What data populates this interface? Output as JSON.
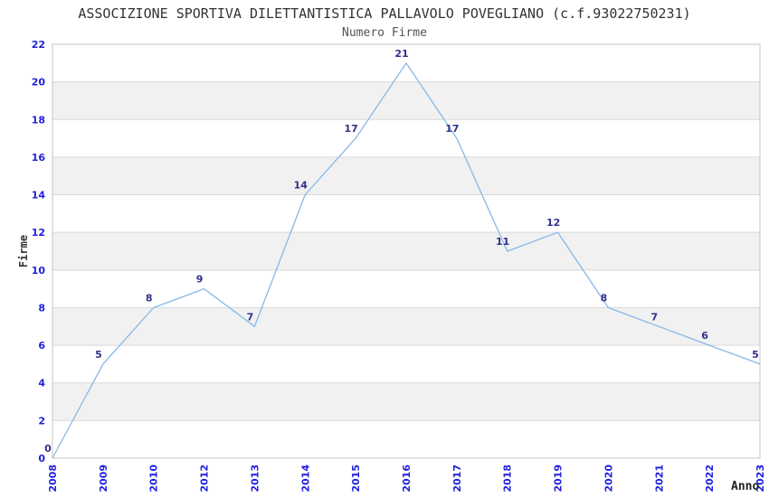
{
  "header": {
    "title": "ASSOCIZIONE SPORTIVA DILETTANTISTICA PALLAVOLO POVEGLIANO (c.f.93022750231)",
    "subtitle": "Numero Firme"
  },
  "chart_data": {
    "type": "line",
    "title": "Numero Firme",
    "categories": [
      "2008",
      "2009",
      "2010",
      "2012",
      "2013",
      "2014",
      "2015",
      "2016",
      "2017",
      "2018",
      "2019",
      "2020",
      "2021",
      "2022",
      "2023"
    ],
    "values": [
      0,
      5,
      8,
      9,
      7,
      14,
      17,
      21,
      17,
      11,
      12,
      8,
      7,
      6,
      5
    ],
    "xlabel": "Anno",
    "ylabel": "Firme",
    "ylim": [
      0,
      22
    ],
    "ytick_step": 2,
    "yticks": [
      0,
      2,
      4,
      6,
      8,
      10,
      12,
      14,
      16,
      18,
      20,
      22
    ],
    "legend": "none",
    "grid": "alternating-horizontal-bands",
    "point_labels_visible": true,
    "colors": {
      "line": "#85b8ea",
      "tick_label": "#2020dd",
      "data_label": "#30308c",
      "band": "#f1f1f1",
      "gridline": "#d9d9d9",
      "border": "#c4c4c4",
      "text": "#333333"
    }
  }
}
